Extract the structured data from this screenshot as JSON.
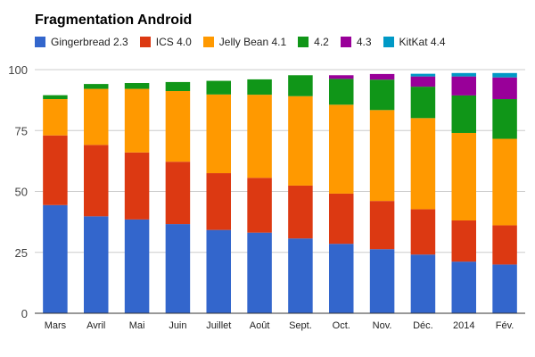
{
  "chart_data": {
    "type": "bar",
    "stacked": true,
    "title": "Fragmentation Android",
    "xlabel": "",
    "ylabel": "",
    "ylim": [
      0,
      100
    ],
    "yticks": [
      0,
      25,
      50,
      75,
      100
    ],
    "grid": true,
    "legend_position": "top",
    "categories": [
      "Mars",
      "Avril",
      "Mai",
      "Juin",
      "Juillet",
      "Août",
      "Sept.",
      "Oct.",
      "Nov.",
      "Déc.",
      "2014",
      "Fév."
    ],
    "series": [
      {
        "name": "Gingerbread 2.3",
        "color": "#3366cc",
        "values": [
          44.4,
          39.8,
          38.5,
          36.6,
          34.2,
          33.1,
          30.7,
          28.5,
          26.3,
          24.1,
          21.2,
          20.0
        ]
      },
      {
        "name": "ICS 4.0",
        "color": "#dc3912",
        "values": [
          28.6,
          29.3,
          27.5,
          25.6,
          23.3,
          22.5,
          21.7,
          20.6,
          19.8,
          18.6,
          16.9,
          16.1
        ]
      },
      {
        "name": "Jelly Bean 4.1",
        "color": "#ff9900",
        "values": [
          14.9,
          23.0,
          26.1,
          29.0,
          32.3,
          34.1,
          36.7,
          36.5,
          37.3,
          37.4,
          35.9,
          35.5
        ]
      },
      {
        "name": "4.2",
        "color": "#109618",
        "values": [
          1.6,
          2.0,
          2.4,
          3.7,
          5.6,
          6.3,
          8.6,
          10.6,
          12.5,
          12.9,
          15.4,
          16.3
        ]
      },
      {
        "name": "4.3",
        "color": "#990099",
        "values": [
          0,
          0,
          0,
          0,
          0,
          0,
          0,
          1.5,
          2.3,
          4.2,
          7.8,
          8.9
        ]
      },
      {
        "name": "KitKat 4.4",
        "color": "#0099c6",
        "values": [
          0,
          0,
          0,
          0,
          0,
          0,
          0,
          0,
          0,
          1.1,
          1.4,
          1.8
        ]
      }
    ]
  }
}
